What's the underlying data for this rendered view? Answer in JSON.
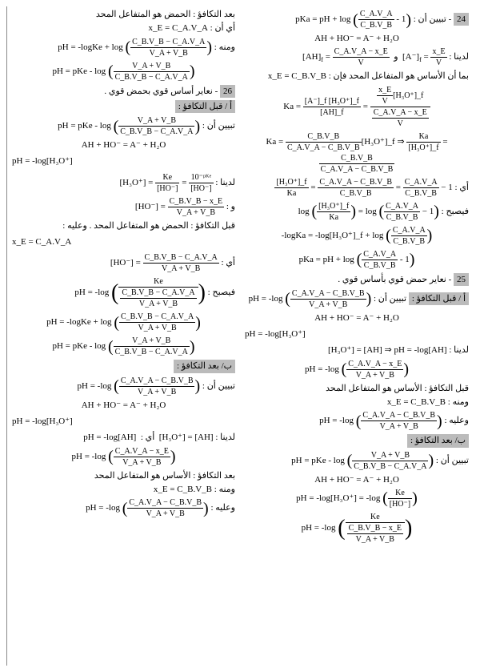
{
  "col_right": {
    "q24": {
      "intro": "- تبيين أن :",
      "eq1_lhs": "pKa = pH + log",
      "eq1_frac_num": "C_A.V_A",
      "eq1_frac_den": "C_B.V_B",
      "eq1_tail": "- 1",
      "react": "AH + HO⁻ = A⁻ + H₂O",
      "ladina": "لدينا :",
      "ah_frac_num": "C_A.V_A − x_E",
      "ah_frac_den": "V",
      "a_frac_num": "x_E",
      "a_frac_den": "V",
      "line_xe": "بما أن الأساس هو المتفاعل المحد فإن :",
      "xe_eq": "x_E = C_B.V_B",
      "ka_label": "Ka =",
      "ka_n1": "[A⁻]_f [H₃O⁺]_f",
      "ka_d1": "[AH]_f",
      "ka_mid_n": "x_E",
      "ka_mid_d": "V",
      "ka_mid_t": "[H₃O⁺]_f",
      "ka_r_n": "C_A.V_A − x_E",
      "ka_r_d": "V",
      "ka3_lhs_n": "C_B.V_B",
      "ka3_lhs_d": "C_A.V_A − C_B.V_B",
      "ka3_tail": "[H₃O⁺]_f",
      "ka3_rhs_lbl": "Ka",
      "ka3_rhs_n": "[H₃O⁺]_f",
      "ka3_rhs2_n": "C_B.V_B",
      "ka3_rhs2_d": "C_A.V_A − C_B.V_B",
      "ay": "أي :",
      "line5_n": "[H₃O⁺]_f",
      "line5_d": "Ka",
      "line5_r_n": "C_A.V_A − C_B.V_B",
      "line5_r_d": "C_B.V_B",
      "line5_t_n": "C_A.V_A",
      "line5_t_d": "C_B.V_B",
      "line5_tail": "− 1",
      "fyusbih": "فيصبح :",
      "log_lhs": "log",
      "log_n": "[H₃O⁺]_f",
      "log_d": "Ka",
      "log_rn": "C_A.V_A",
      "log_rd": "C_B.V_B",
      "log_tail": "− 1",
      "mlogka": "-logKa = -log[H₃O⁺]_f + log",
      "mlogka_n": "C_A.V_A",
      "mlogka_d": "C_B.V_B",
      "pka2": "pKa = pH + log",
      "pka2_n": "C_A.V_A",
      "pka2_d": "C_B.V_B"
    },
    "q25": {
      "title": "- نعاير حمض قوي بأساس قوي .",
      "sub_a": "أ / قبل التكافؤ :",
      "tabyeen": "تبيين أن :",
      "eq_lhs": "pH = -log",
      "eq_n": "C_A.V_A − C_B.V_B",
      "eq_d": "V_A + V_B",
      "react": "AH + HO⁻ = A⁻ + H₂O",
      "phlog": "pH = -log[H₃O⁺]",
      "ladina": "لدينا :",
      "h3o_ah": "[H₃O⁺] = [AH] ⇒ pH = -log[AH]",
      "phlog2": "pH = -log",
      "ph2_n": "C_A.V_A − x_E",
      "ph2_d": "V_A + V_B",
      "qabl": "قبل التكافؤ : الأساس هو المتفاعل المحد",
      "waminhu": "ومنه :",
      "xe": "x_E = C_B.V_B",
      "waalayh": "وعليه :",
      "ph3_n": "C_A.V_A − C_B.V_B",
      "ph3_d": "V_A + V_B",
      "sub_b": "ب/ بعد التكافؤ :",
      "tabyeen2": "تبيين أن :",
      "pke": "pH = pKe - log",
      "pke_n": "V_A + V_B",
      "pke_d": "C_B.V_B − C_A.V_A",
      "react2": "AH + HO⁻ = A⁻ + H₂O",
      "phlog3_lhs": "pH = -log[H₃O⁺] = -log",
      "phlog3_n": "Ke",
      "phlog3_d": "[HO⁻]",
      "ph4": "pH = -log",
      "ph4_in_n": "Ke",
      "ph4_in_d_n": "C_B.V_B − x_E",
      "ph4_in_d_d": "V_A + V_B"
    }
  },
  "col_left": {
    "top": {
      "baad": "بعد التكافؤ : الحمض هو المتفاعل المحد",
      "ay_an": "أي أن :",
      "xe": "x_E = C_A.V_A",
      "waminhu": "ومنه :",
      "ph1": "pH = -logKe + log",
      "ph1_n": "C_B.V_B − C_A.V_A",
      "ph1_d": "V_A + V_B",
      "pke": "pH = pKe - log",
      "pke_n": "V_A + V_B",
      "pke_d": "C_B.V_B − C_A.V_A"
    },
    "q26": {
      "title": "- نعاير أساس قوي بحمض قوي .",
      "sub_a": "أ / قبل التكافؤ :",
      "tabyeen": "تبيين أن :",
      "pke": "pH = pKe - log",
      "pke_n": "V_A + V_B",
      "pke_d": "C_B.V_B − C_A.V_A",
      "react": "AH + HO⁻ = A⁻ + H₂O",
      "phlog": "pH = -log[H₃O⁺]",
      "ladina": "لدينا :",
      "h3o_n": "Ke",
      "h3o_d": "[HO⁻]",
      "h3o_r_n": "10⁻ᵖᴷᵉ",
      "h3o_r_d": "[HO⁻]",
      "wa": "و :",
      "ho_n": "C_B.V_B − x_E",
      "ho_d": "V_A + V_B",
      "qabl": "قبل التكافؤ : الحمض هو المتفاعل المحد . وعليه :",
      "xe": "x_E = C_A.V_A",
      "ay": "أي :",
      "ho2_n": "C_B.V_B − C_A.V_A",
      "ho2_d": "V_A + V_B",
      "fyusbih": "فيصبح :",
      "ph2": "pH = -log",
      "ph2_out_n": "Ke",
      "ph2_out_d_n": "C_B.V_B − C_A.V_A",
      "ph2_out_d_d": "V_A + V_B",
      "ph3": "pH = -logKe + log",
      "ph3_n": "C_B.V_B − C_A.V_A",
      "ph3_d": "V_A + V_B",
      "pke2": "pH = pKe - log",
      "pke2_n": "V_A + V_B",
      "pke2_d": "C_B.V_B − C_A.V_A",
      "sub_b": "ب/ بعد التكافؤ :",
      "tabyeen2": "تبيين أن :",
      "ph4": "pH = -log",
      "ph4_n": "C_A.V_A − C_B.V_B",
      "ph4_d": "V_A + V_B",
      "react2": "AH + HO⁻ = A⁻ + H₂O",
      "phlog2": "pH = -log[H₃O⁺]",
      "ladina2": "لدينا :",
      "h3o_ah": "[H₃O⁺] = [AH]",
      "ay2": "أي :",
      "phlogah": "pH = -log[AH]",
      "ph5": "pH = -log",
      "ph5_n": "C_A.V_A − x_E",
      "ph5_d": "V_A + V_B",
      "baad": "بعد التكافؤ : الأساس هو المتفاعل المحد",
      "waminhu": "ومنه :",
      "xe2": "x_E = C_B.V_B",
      "waalayh": "وعليه :",
      "ph6": "pH = -log",
      "ph6_n": "C_A.V_A − C_B.V_B",
      "ph6_d": "V_A + V_B"
    }
  }
}
